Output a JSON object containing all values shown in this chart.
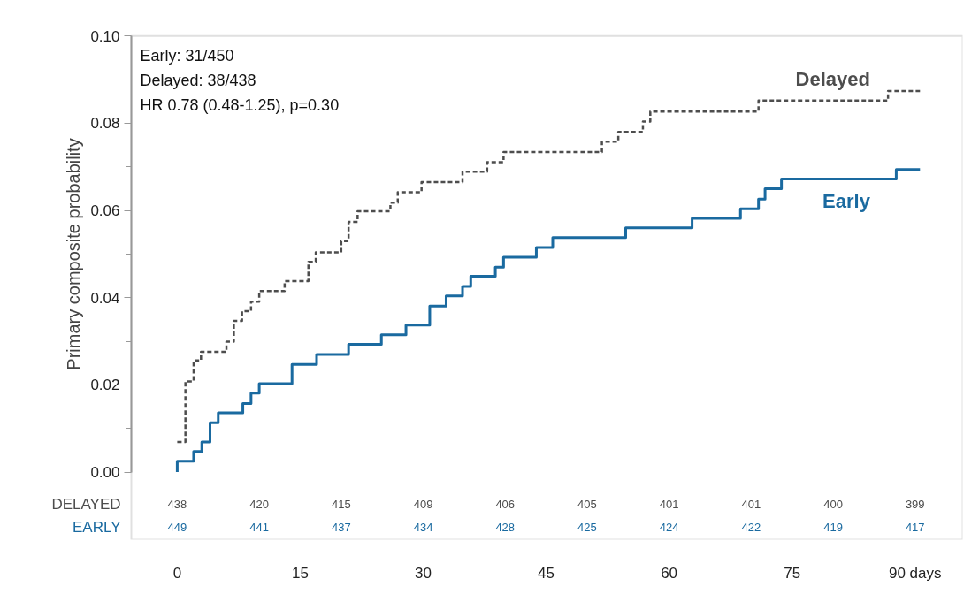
{
  "chart_data": {
    "type": "step",
    "ylabel": "Primary composite probability",
    "xlim": [
      -5.6,
      95.8
    ],
    "ylim": [
      -0.0155,
      0.1
    ],
    "xticks": [
      0,
      15,
      30,
      45,
      60,
      75,
      {
        "value": 90,
        "label": "90 days"
      }
    ],
    "yticks": [
      {
        "value": 0,
        "label": "0.00"
      },
      {
        "value": 0.02,
        "label": "0.02"
      },
      {
        "value": 0.04,
        "label": "0.04"
      },
      {
        "value": 0.06,
        "label": "0.06"
      },
      {
        "value": 0.08,
        "label": "0.08"
      },
      {
        "value": 0.1,
        "label": "0.10"
      }
    ],
    "grid": false,
    "series": [
      {
        "name": "Delayed",
        "color": "#4d4d4d",
        "line_style": "dashed",
        "x": [
          0,
          1.0,
          2.0,
          2.9,
          6.0,
          6.9,
          7.9,
          9.0,
          10.0,
          13.1,
          16.0,
          16.9,
          20.0,
          20.9,
          22.0,
          26.0,
          26.9,
          29.8,
          34.8,
          37.8,
          39.8,
          51.8,
          53.8,
          56.8,
          57.7,
          70.9,
          86.7,
          90.6
        ],
        "values": [
          0.0069,
          0.0208,
          0.0256,
          0.0276,
          0.0299,
          0.0347,
          0.0369,
          0.0391,
          0.0415,
          0.0438,
          0.0482,
          0.0504,
          0.053,
          0.0574,
          0.0598,
          0.0618,
          0.0642,
          0.0665,
          0.0689,
          0.0711,
          0.0734,
          0.0758,
          0.078,
          0.0804,
          0.0827,
          0.0852,
          0.0874,
          0.0874
        ]
      },
      {
        "name": "Early",
        "color": "#1a6aa0",
        "line_style": "solid",
        "x": [
          0,
          0,
          2.0,
          3.0,
          4.0,
          5.0,
          8.0,
          9.0,
          10.0,
          14.0,
          17.0,
          20.9,
          24.9,
          27.9,
          30.8,
          32.8,
          34.8,
          35.8,
          38.8,
          39.8,
          43.8,
          45.8,
          54.7,
          62.8,
          68.7,
          70.9,
          71.7,
          73.7,
          87.7,
          90.6
        ],
        "values": [
          0,
          0.0025,
          0.0047,
          0.0069,
          0.0113,
          0.0136,
          0.0157,
          0.0181,
          0.0203,
          0.0247,
          0.027,
          0.0293,
          0.0315,
          0.0337,
          0.0381,
          0.0404,
          0.0426,
          0.0449,
          0.047,
          0.0493,
          0.0515,
          0.0538,
          0.056,
          0.0582,
          0.0604,
          0.0626,
          0.065,
          0.0672,
          0.0694,
          0.0694
        ]
      }
    ],
    "annotations": [
      "Early: 31/450",
      "Delayed: 38/438",
      "HR 0.78 (0.48-1.25), p=0.30",
      "DELAYED",
      "438",
      "420",
      "415",
      "409",
      "406",
      "405",
      "401",
      "401",
      "400",
      "399",
      "EARLY",
      "449",
      "441",
      "437",
      "434",
      "428",
      "425",
      "424",
      "422",
      "419",
      "417"
    ]
  }
}
